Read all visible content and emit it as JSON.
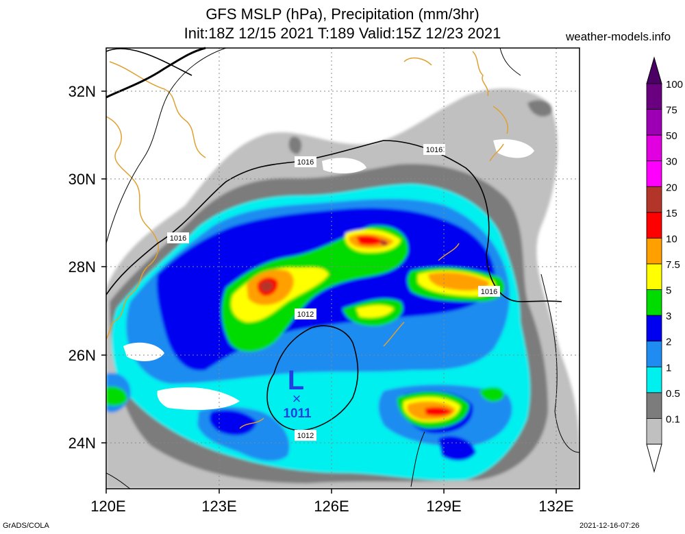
{
  "header": {
    "title_line1": "GFS MSLP (hPa), Precipitation (mm/3hr)",
    "title_line2": "Init:18Z 12/15 2021 T:189 Valid:15Z 12/23 2021",
    "site": "weather-models.info"
  },
  "footer": {
    "left": "GrADS/COLA",
    "right": "2021-12-16-07:26"
  },
  "map": {
    "lat_labels": [
      {
        "text": "32N",
        "value": 32
      },
      {
        "text": "30N",
        "value": 30
      },
      {
        "text": "28N",
        "value": 28
      },
      {
        "text": "26N",
        "value": 26
      },
      {
        "text": "24N",
        "value": 24
      }
    ],
    "lon_labels": [
      {
        "text": "120E",
        "value": 120
      },
      {
        "text": "123E",
        "value": 123
      },
      {
        "text": "126E",
        "value": 126
      },
      {
        "text": "129E",
        "value": 129
      },
      {
        "text": "132E",
        "value": 132
      }
    ],
    "isobar_labels": [
      "1016",
      "1016",
      "1016",
      "1016",
      "1012",
      "1012"
    ],
    "low": {
      "symbol": "L",
      "mark": "×",
      "pressure": "1011"
    }
  },
  "colorbar": {
    "levels": [
      {
        "label": "100",
        "color": "#6a007f"
      },
      {
        "label": "75",
        "color": "#9d00b4"
      },
      {
        "label": "50",
        "color": "#e000e0"
      },
      {
        "label": "30",
        "color": "#ff00ff"
      },
      {
        "label": "20",
        "color": "#b3352a"
      },
      {
        "label": "15",
        "color": "#ff0000"
      },
      {
        "label": "10",
        "color": "#ffa000"
      },
      {
        "label": "7.5",
        "color": "#ffff00"
      },
      {
        "label": "5",
        "color": "#00dc00"
      },
      {
        "label": "3",
        "color": "#0000f0"
      },
      {
        "label": "2",
        "color": "#1e8cf0"
      },
      {
        "label": "1",
        "color": "#00f0f0"
      },
      {
        "label": "0.5",
        "color": "#7c7c7c"
      },
      {
        "label": "0.1",
        "color": "#c0c0c0"
      }
    ],
    "top_color": "#4b0066"
  }
}
